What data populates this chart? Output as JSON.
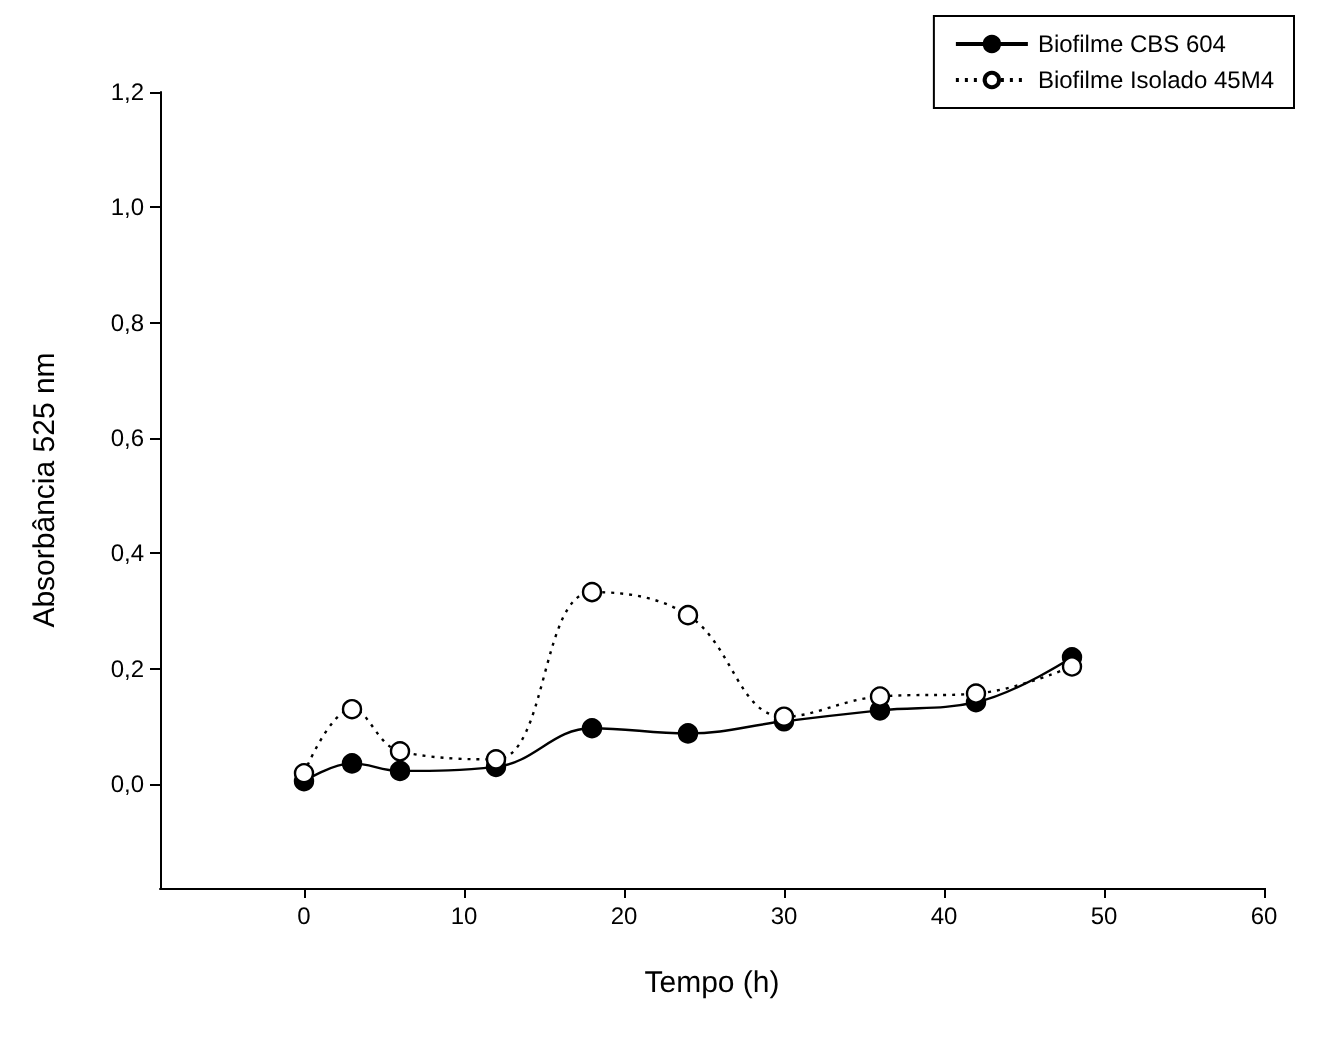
{
  "chart_data": {
    "type": "line",
    "xlabel": "Tempo (h)",
    "ylabel": "Absorbância 525 nm",
    "x": [
      0,
      3,
      6,
      12,
      18,
      24,
      30,
      36,
      42,
      48
    ],
    "series": [
      {
        "name": "Biofilme CBS 604",
        "color": "#000000",
        "line_style": "solid",
        "values": [
          0.005,
          0.036,
          0.023,
          0.03,
          0.097,
          0.088,
          0.109,
          0.128,
          0.142,
          0.22
        ]
      },
      {
        "name": "Biofilme Isolado 45M4",
        "color": "#000000",
        "line_style": "dotted",
        "colors": [
          "#ffffff",
          "#ffffff",
          "#ffffff",
          "#ffffff",
          "#ffffff",
          "#ffffff",
          "#ffffff",
          "#ffffff",
          "#ffffff",
          "#ffffff"
        ],
        "values": [
          0.019,
          0.13,
          0.057,
          0.043,
          0.333,
          0.293,
          0.117,
          0.152,
          0.157,
          0.204
        ]
      }
    ],
    "xlim": [
      -9,
      60
    ],
    "xticks": [
      0,
      10,
      20,
      30,
      40,
      50,
      60
    ],
    "ylim": [
      -0.18,
      1.2
    ],
    "yticks": [
      {
        "value": 0,
        "label": "0,0"
      },
      {
        "value": 0.2,
        "label": "0,2"
      },
      {
        "value": 0.4,
        "label": "0,4"
      },
      {
        "value": 0.6,
        "label": "0,6"
      },
      {
        "value": 0.8,
        "label": "0,8"
      },
      {
        "value": 1.0,
        "label": "1,0"
      },
      {
        "value": 1.2,
        "label": "1,2"
      }
    ],
    "marker": "circle",
    "grid": false,
    "legend": "top right"
  }
}
